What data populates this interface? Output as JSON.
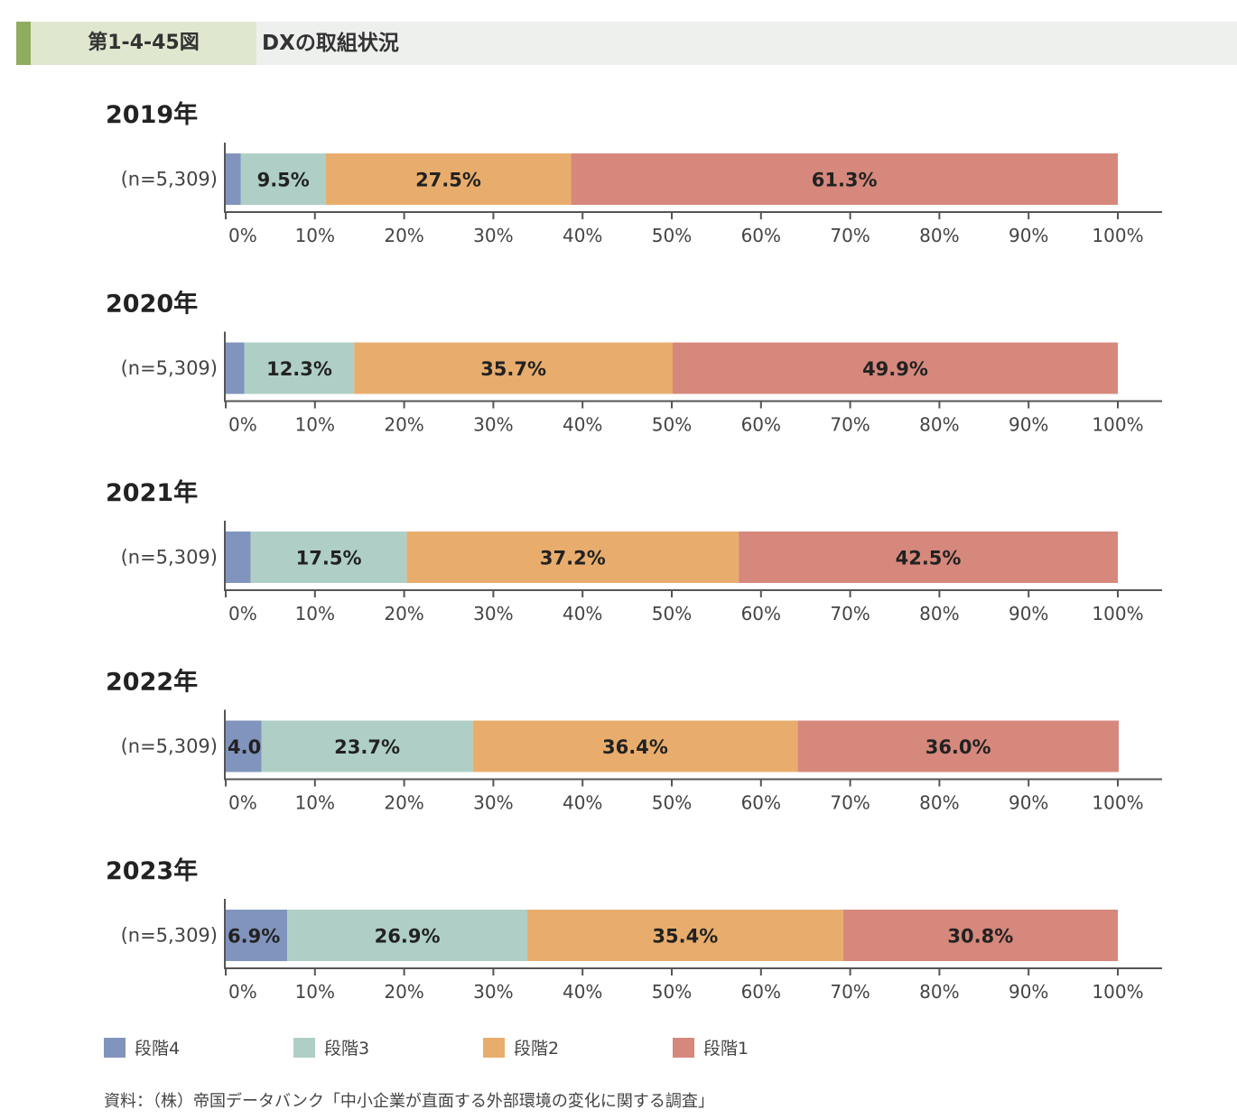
{
  "header": {
    "figure_label": "第1-4-45図",
    "title": "DXの取組状況"
  },
  "colors": {
    "stage4": "#8194bd",
    "stage3": "#afcfc6",
    "stage2": "#e8ad6d",
    "stage1": "#d6887c"
  },
  "chart_data": {
    "type": "bar",
    "orientation": "horizontal",
    "stacked": true,
    "xlim": [
      0,
      100
    ],
    "x_ticks": [
      "0%",
      "10%",
      "20%",
      "30%",
      "40%",
      "50%",
      "60%",
      "70%",
      "80%",
      "90%",
      "100%"
    ],
    "legend_position": "bottom",
    "series": [
      {
        "name": "段階4",
        "key": "stage4"
      },
      {
        "name": "段階3",
        "key": "stage3"
      },
      {
        "name": "段階2",
        "key": "stage2"
      },
      {
        "name": "段階1",
        "key": "stage1"
      }
    ],
    "panels": [
      {
        "year": "2019年",
        "n": "(n=5,309)",
        "values": [
          1.7,
          9.5,
          27.5,
          61.3
        ],
        "labels": [
          "",
          "9.5%",
          "27.5%",
          "61.3%"
        ]
      },
      {
        "year": "2020年",
        "n": "(n=5,309)",
        "values": [
          2.1,
          12.3,
          35.7,
          49.9
        ],
        "labels": [
          "",
          "12.3%",
          "35.7%",
          "49.9%"
        ]
      },
      {
        "year": "2021年",
        "n": "(n=5,309)",
        "values": [
          2.8,
          17.5,
          37.2,
          42.5
        ],
        "labels": [
          "",
          "17.5%",
          "37.2%",
          "42.5%"
        ]
      },
      {
        "year": "2022年",
        "n": "(n=5,309)",
        "values": [
          4.0,
          23.7,
          36.4,
          36.0
        ],
        "labels": [
          "4.0%",
          "23.7%",
          "36.4%",
          "36.0%"
        ]
      },
      {
        "year": "2023年",
        "n": "(n=5,309)",
        "values": [
          6.9,
          26.9,
          35.4,
          30.8
        ],
        "labels": [
          "6.9%",
          "26.9%",
          "35.4%",
          "30.8%"
        ]
      }
    ]
  },
  "source": "資料：（株）帝国データバンク「中小企業が直面する外部環境の変化に関する調査」"
}
